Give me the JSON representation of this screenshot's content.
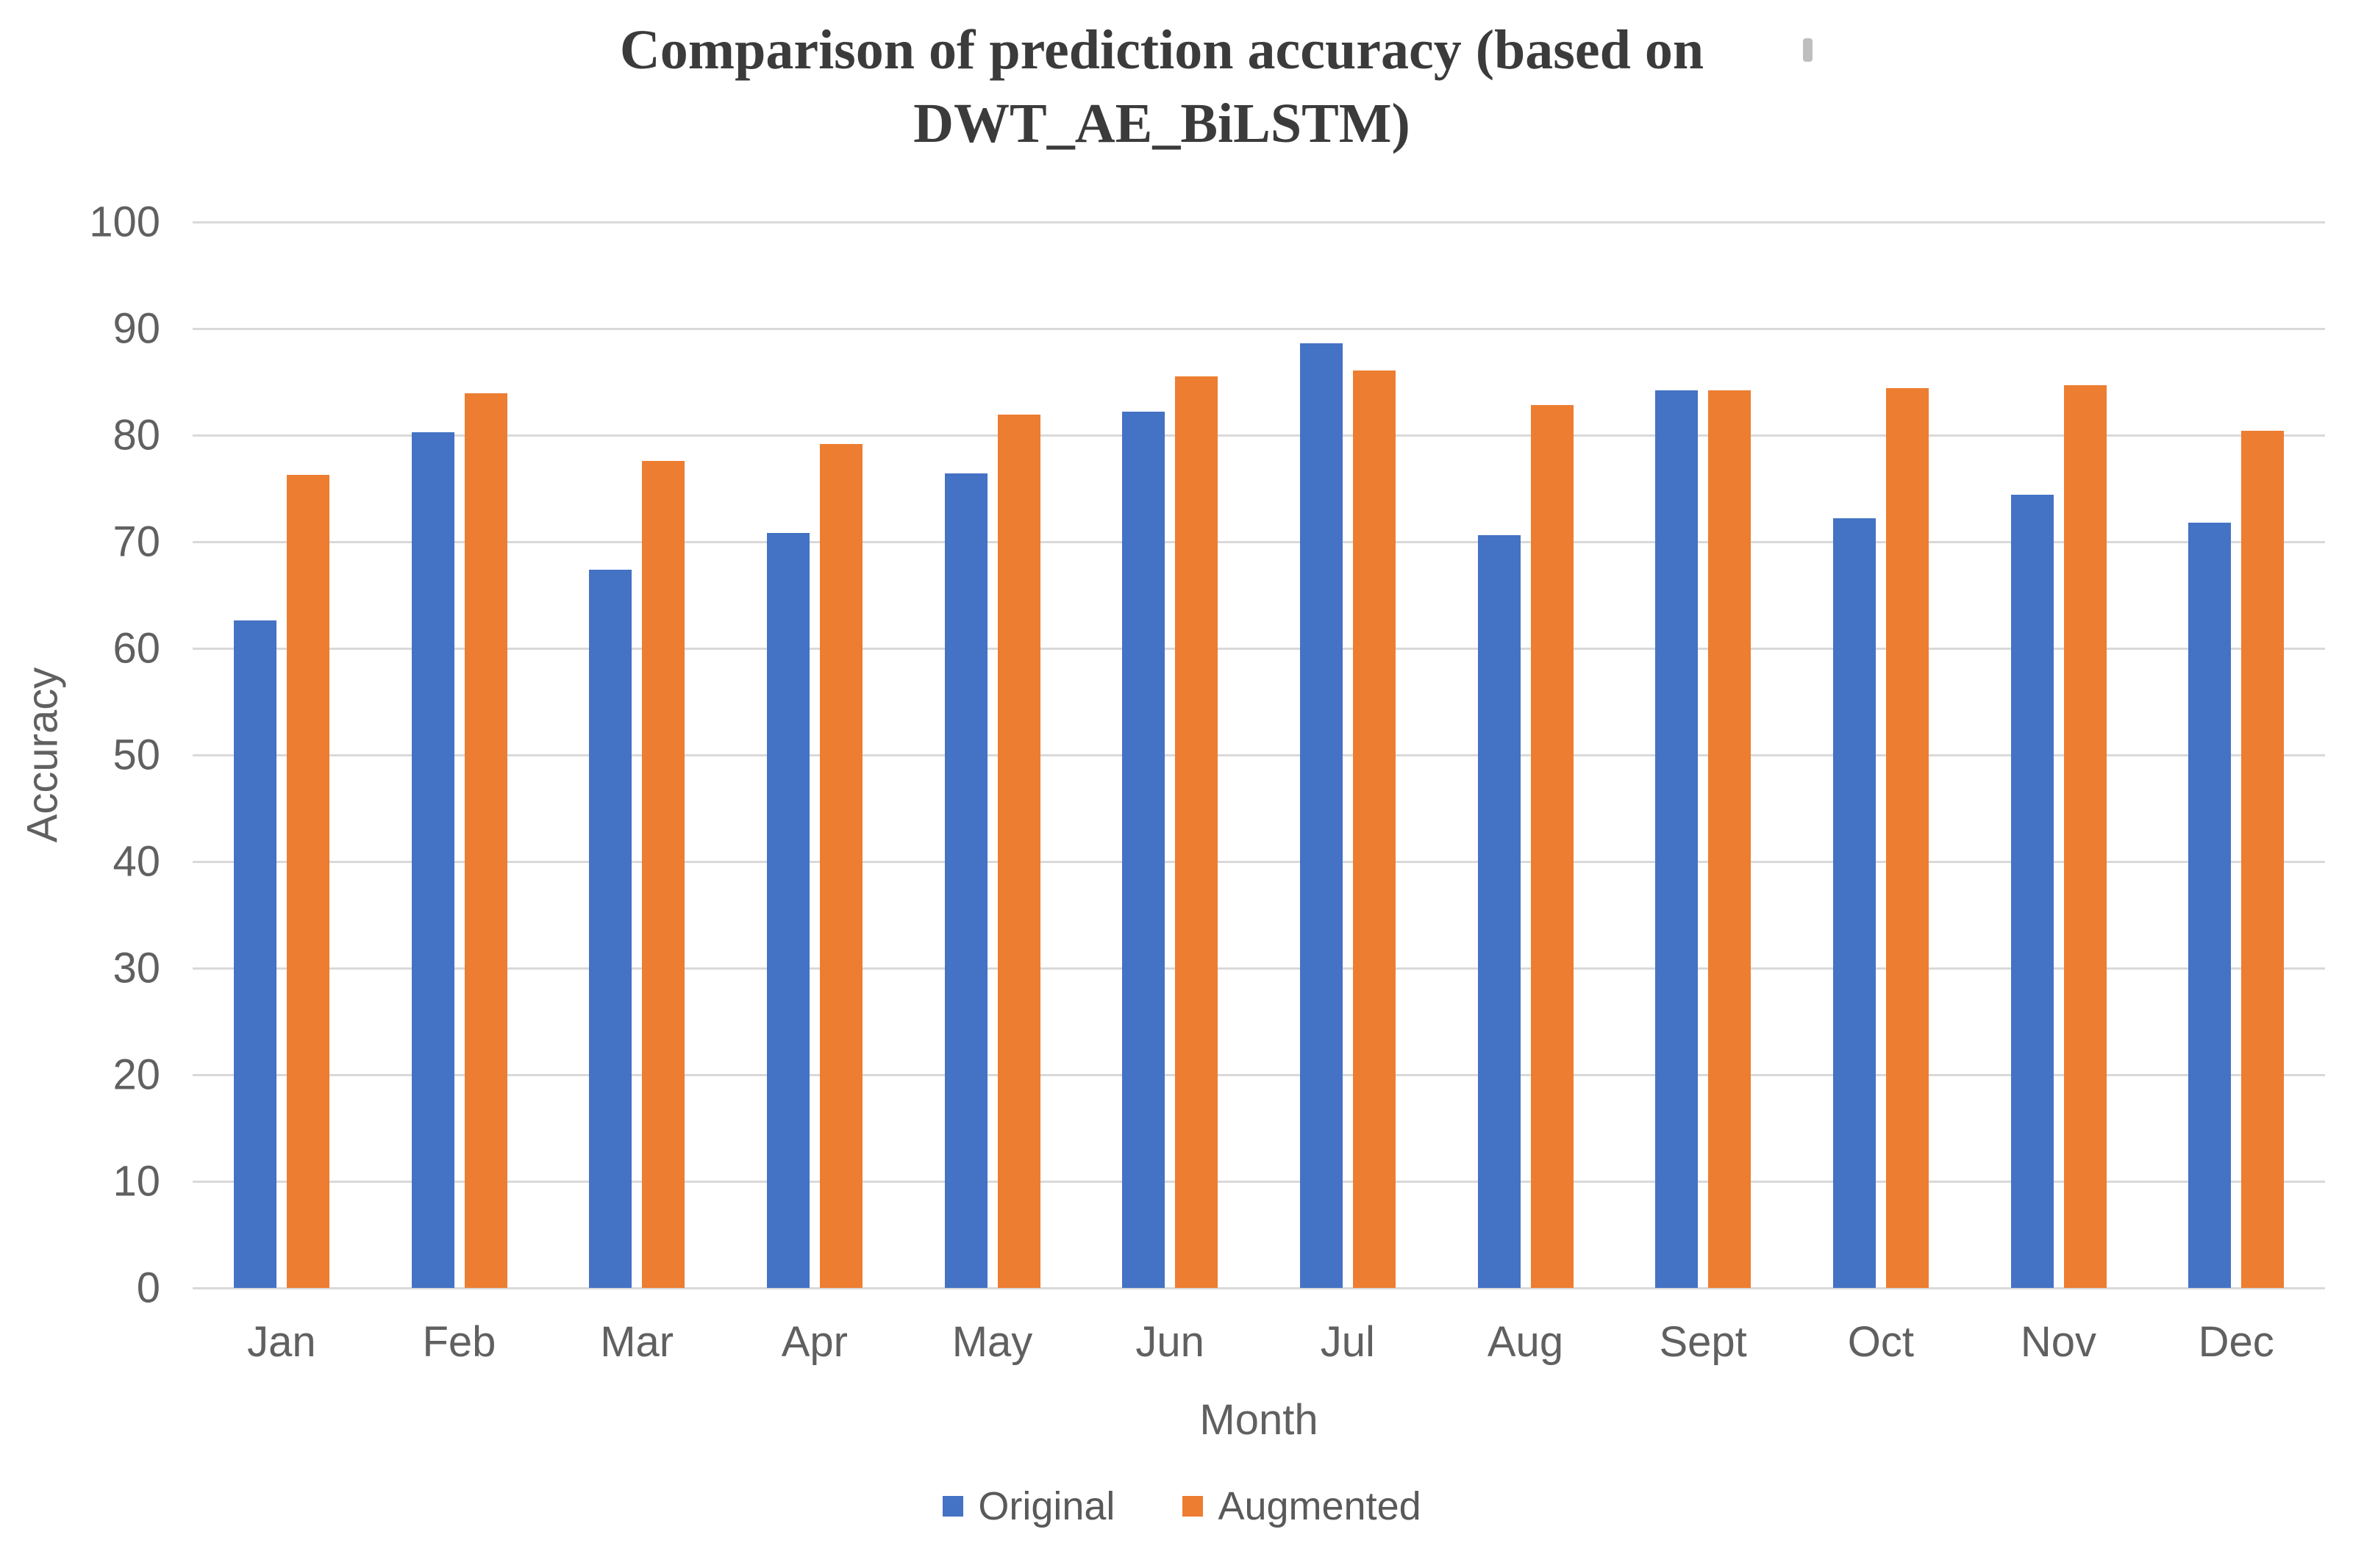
{
  "header": {
    "title_line1": "Comparison of prediction accuracy (based on",
    "title_line2": "DWT_AE_BiLSTM)"
  },
  "chart_data": {
    "type": "bar",
    "title": "Comparison of prediction accuracy (based on DWT_AE_BiLSTM)",
    "categories": [
      "Jan",
      "Feb",
      "Mar",
      "Apr",
      "May",
      "Jun",
      "Jul",
      "Aug",
      "Sept",
      "Oct",
      "Nov",
      "Dec"
    ],
    "series": [
      {
        "name": "Original",
        "color": "#4472C4",
        "values": [
          62.6,
          80.3,
          67.4,
          70.8,
          76.4,
          82.2,
          88.6,
          70.6,
          84.2,
          72.2,
          74.4,
          71.8
        ]
      },
      {
        "name": "Augmented",
        "color": "#ED7D31",
        "values": [
          76.3,
          83.9,
          77.6,
          79.2,
          81.9,
          85.5,
          86.1,
          82.8,
          84.2,
          84.4,
          84.7,
          80.4
        ]
      }
    ],
    "xlabel": "Month",
    "ylabel": "Accuracy",
    "ylim": [
      0,
      100
    ],
    "ytick_step": 10,
    "grid": true,
    "legend_position": "bottom",
    "colors": {
      "gridline": "#D9D9D9",
      "tick_text": "#606060",
      "title_text": "#3B3B3B"
    }
  }
}
